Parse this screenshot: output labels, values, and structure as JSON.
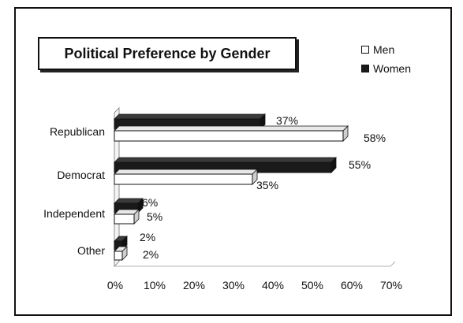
{
  "chart_data": {
    "type": "bar",
    "orientation": "horizontal",
    "title": "Political Preference by Gender",
    "categories": [
      "Republican",
      "Democrat",
      "Independent",
      "Other"
    ],
    "series": [
      {
        "name": "Men",
        "values": [
          58,
          35,
          5,
          2
        ],
        "color": "#ffffff"
      },
      {
        "name": "Women",
        "values": [
          37,
          55,
          6,
          2
        ],
        "color": "#1a1a1a"
      }
    ],
    "data_labels": {
      "Men": [
        "58%",
        "35%",
        "5%",
        "2%"
      ],
      "Women": [
        "37%",
        "55%",
        "6%",
        "2%"
      ]
    },
    "x_ticks": [
      "0%",
      "10%",
      "20%",
      "30%",
      "40%",
      "50%",
      "60%",
      "70%"
    ],
    "xlim": [
      0,
      70
    ],
    "xlabel": "",
    "ylabel": "",
    "grid": false,
    "legend_position": "top-right",
    "style": "3d"
  }
}
